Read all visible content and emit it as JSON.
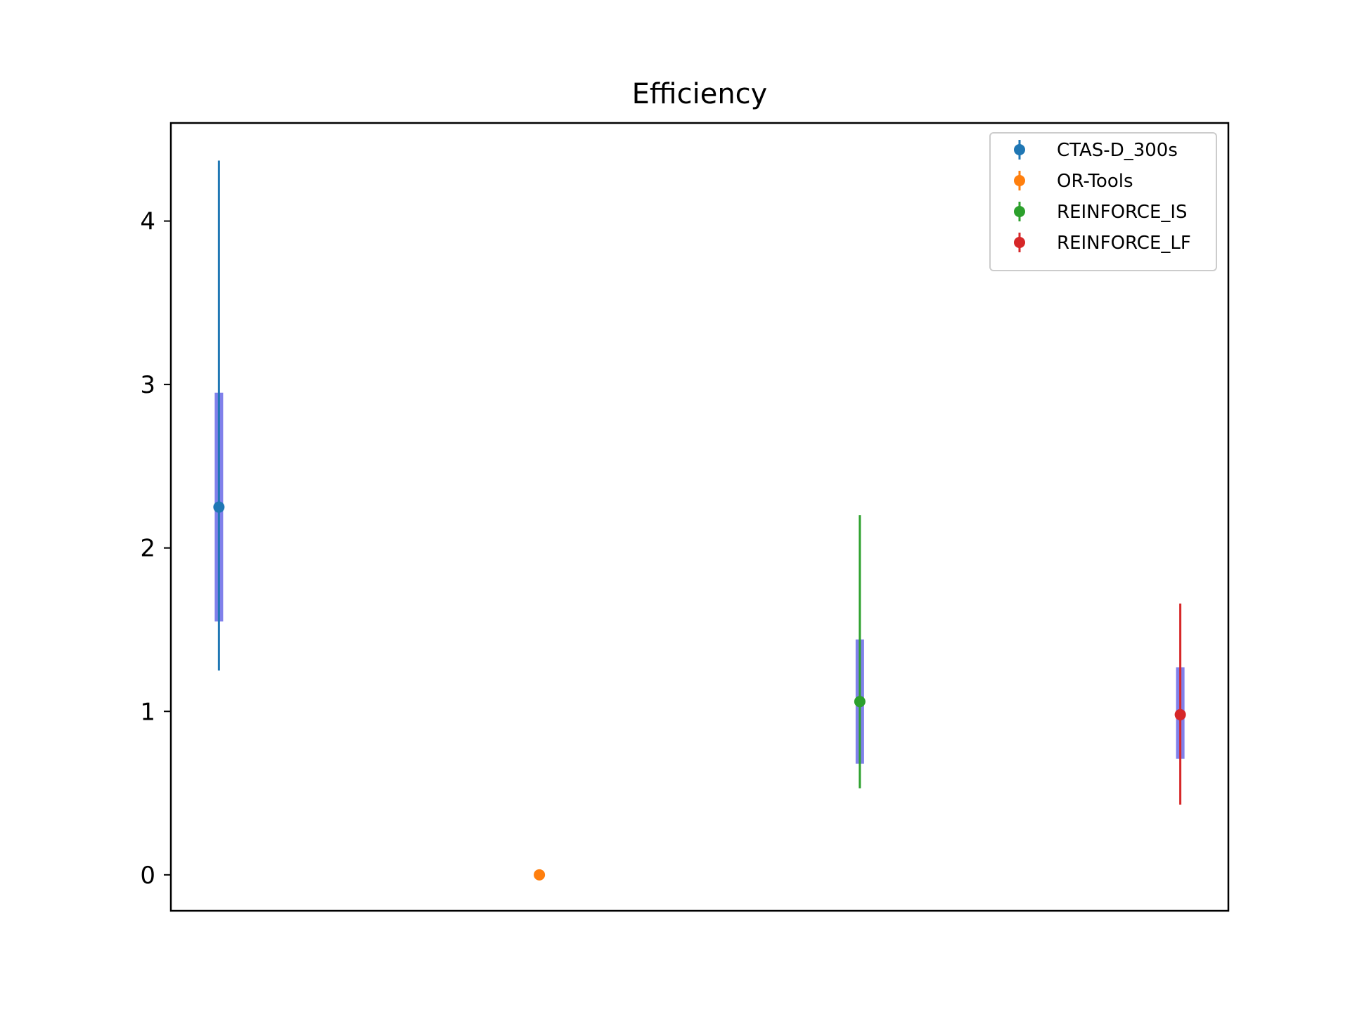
{
  "chart_data": {
    "type": "scatter",
    "title": "Efficiency",
    "xlabel": "",
    "ylabel": "",
    "ylim": [
      -0.22,
      4.6
    ],
    "yticks": [
      0,
      1,
      2,
      3,
      4
    ],
    "xticks_visible": false,
    "grid": false,
    "legend_placement": "top-right",
    "box_color": "#6a6ae6",
    "series": [
      {
        "name": "CTAS-D_300s",
        "x": 0,
        "y": 2.25,
        "err_low": 1.25,
        "err_high": 4.37,
        "box_low": 1.55,
        "box_high": 2.95,
        "color": "#1f77b4"
      },
      {
        "name": "OR-Tools",
        "x": 1,
        "y": 0.0,
        "err_low": 0.0,
        "err_high": 0.0,
        "box_low": null,
        "box_high": null,
        "color": "#ff7f0e"
      },
      {
        "name": "REINFORCE_IS",
        "x": 2,
        "y": 1.06,
        "err_low": 0.53,
        "err_high": 2.2,
        "box_low": 0.68,
        "box_high": 1.44,
        "color": "#2ca02c"
      },
      {
        "name": "REINFORCE_LF",
        "x": 3,
        "y": 0.98,
        "err_low": 0.43,
        "err_high": 1.66,
        "box_low": 0.71,
        "box_high": 1.27,
        "color": "#d62728"
      }
    ]
  }
}
